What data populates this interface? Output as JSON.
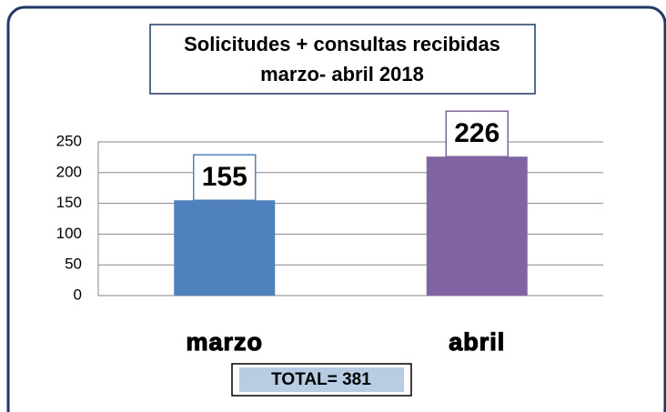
{
  "chart_data": {
    "type": "bar",
    "title": "Solicitudes + consultas recibidas",
    "subtitle": "marzo- abril 2018",
    "categories": [
      "marzo",
      "abril"
    ],
    "values": [
      155,
      226
    ],
    "colors": [
      "#4f81bd",
      "#8064a2"
    ],
    "ylim": [
      0,
      250
    ],
    "yticks": [
      0,
      50,
      100,
      150,
      200,
      250
    ],
    "grid": true,
    "annotation": "TOTAL= 381"
  }
}
